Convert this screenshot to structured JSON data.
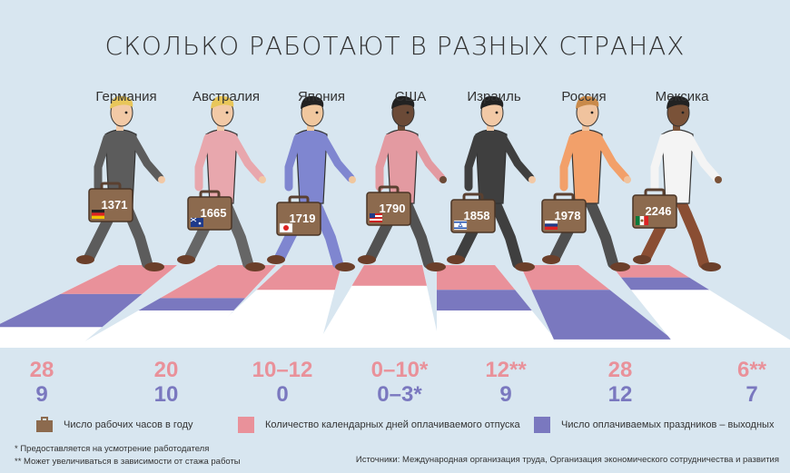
{
  "title": "СКОЛЬКО РАБОТАЮТ В РАЗНЫХ СТРАНАХ",
  "colors": {
    "vacation": "#e9919a",
    "holidays": "#7a78bf",
    "hours": "#8c6a4e",
    "background": "#d8e6f0"
  },
  "countries": [
    {
      "name": "Германия",
      "hours": "1371",
      "vacation": "28",
      "holidays": "9",
      "flag": "germany-flag"
    },
    {
      "name": "Австралия",
      "hours": "1665",
      "vacation": "20",
      "holidays": "10",
      "flag": "australia-flag"
    },
    {
      "name": "Япония",
      "hours": "1719",
      "vacation": "10–12",
      "holidays": "0",
      "flag": "japan-flag"
    },
    {
      "name": "США",
      "hours": "1790",
      "vacation": "0–10*",
      "holidays": "0–3*",
      "flag": "usa-flag"
    },
    {
      "name": "Израиль",
      "hours": "1858",
      "vacation": "12**",
      "holidays": "9",
      "flag": "israel-flag"
    },
    {
      "name": "Россия",
      "hours": "1978",
      "vacation": "28",
      "holidays": "12",
      "flag": "russia-flag"
    },
    {
      "name": "Мексика",
      "hours": "2246",
      "vacation": "6**",
      "holidays": "7",
      "flag": "mexico-flag"
    }
  ],
  "legend": {
    "hours": "Число рабочих часов в году",
    "vacation": "Количество календарных дней оплачиваемого отпуска",
    "holidays": "Число оплачиваемых праздников – выходных"
  },
  "footnotes": [
    "* Предоставляется на усмотрение работодателя",
    "** Может увеличиваться в зависимости от стажа работы"
  ],
  "source": "Источники: Международная организация труда, Организация экономического сотрудничества и развития"
}
